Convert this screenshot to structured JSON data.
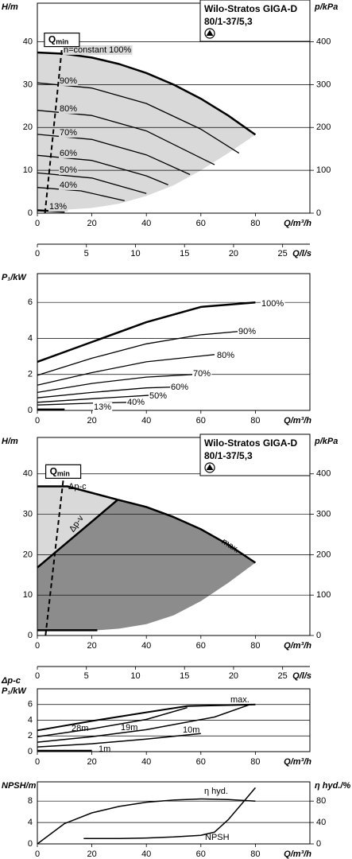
{
  "chart_data": [
    {
      "type": "line",
      "title": [
        "Wilo-Stratos GIGA-D",
        "80/1-37/5,3"
      ],
      "ylabel": "H/m",
      "y2label": "p/kPa",
      "xlabel": "Q/m³/h",
      "x2label": "Q/l/s",
      "xlim": [
        0,
        100
      ],
      "xticks": [
        0,
        20,
        40,
        60,
        80
      ],
      "ylim": [
        0,
        49
      ],
      "yticks": [
        0,
        10,
        20,
        30,
        40
      ],
      "y2lim": [
        0,
        490
      ],
      "y2ticks": [
        0,
        100,
        200,
        300,
        400
      ],
      "x2lim": [
        0,
        27.78
      ],
      "x2ticks": [
        0,
        5,
        10,
        15,
        20,
        25
      ],
      "grid": true,
      "areas": [
        {
          "color": "#d9d9d9",
          "x": [
            0,
            10,
            20,
            30,
            40,
            50,
            60,
            70,
            80,
            70,
            60,
            50,
            40,
            30,
            20,
            10,
            0
          ],
          "values": [
            37.5,
            37.2,
            36.3,
            34.8,
            32.7,
            30,
            26.7,
            22.8,
            18.3,
            14,
            10,
            6.5,
            4,
            2.2,
            1.2,
            0.8,
            0.7
          ]
        }
      ],
      "qmin": {
        "label": {
          "main": "Q",
          "sub": "min"
        },
        "x": [
          2.8,
          9
        ],
        "values": [
          0,
          38.5
        ]
      },
      "series": [
        {
          "name": "n=constant 100%",
          "color": "#000000",
          "line_width": 2.5,
          "x": [
            0,
            10,
            20,
            30,
            40,
            50,
            60,
            70,
            80
          ],
          "values": [
            37.5,
            37.2,
            36.3,
            34.8,
            32.7,
            30,
            26.7,
            22.8,
            18.3
          ]
        },
        {
          "name": "90%",
          "color": "#000000",
          "line_width": 1.3,
          "x": [
            0,
            20,
            40,
            60,
            74
          ],
          "values": [
            30.4,
            29.2,
            25.6,
            19.6,
            14.0
          ]
        },
        {
          "name": "80%",
          "color": "#000000",
          "line_width": 1.3,
          "x": [
            0,
            20,
            40,
            65
          ],
          "values": [
            24.0,
            22.8,
            19.2,
            11.3
          ]
        },
        {
          "name": "70%",
          "color": "#000000",
          "line_width": 1.3,
          "x": [
            0,
            20,
            40,
            56
          ],
          "values": [
            18.4,
            17.2,
            13.6,
            9.0
          ]
        },
        {
          "name": "60%",
          "color": "#000000",
          "line_width": 1.3,
          "x": [
            0,
            20,
            40,
            48
          ],
          "values": [
            13.5,
            12.3,
            8.7,
            6.6
          ]
        },
        {
          "name": "50%",
          "color": "#000000",
          "line_width": 1.3,
          "x": [
            0,
            20,
            40
          ],
          "values": [
            9.4,
            8.2,
            4.6
          ]
        },
        {
          "name": "40%",
          "color": "#000000",
          "line_width": 1.3,
          "x": [
            0,
            16,
            32
          ],
          "values": [
            6.0,
            5.2,
            2.9
          ]
        },
        {
          "name": "13%",
          "color": "#000000",
          "line_width": 2.5,
          "x": [
            0,
            10
          ],
          "values": [
            0.65,
            0.35
          ]
        }
      ]
    },
    {
      "type": "line",
      "ylabel": "P₁/kW",
      "xlabel": "Q/m³/h",
      "xlim": [
        0,
        100
      ],
      "xticks": [
        0,
        20,
        40,
        60,
        80
      ],
      "ylim": [
        0,
        7.6
      ],
      "yticks": [
        0,
        2,
        4,
        6
      ],
      "grid": true,
      "series": [
        {
          "name": "100%",
          "color": "#000000",
          "line_width": 2.5,
          "x": [
            0,
            20,
            40,
            60,
            80
          ],
          "values": [
            2.7,
            3.8,
            4.9,
            5.75,
            6.0
          ]
        },
        {
          "name": "90%",
          "color": "#000000",
          "line_width": 1.3,
          "x": [
            0,
            20,
            40,
            60,
            75
          ],
          "values": [
            1.95,
            2.9,
            3.7,
            4.2,
            4.4
          ]
        },
        {
          "name": "80%",
          "color": "#000000",
          "line_width": 1.3,
          "x": [
            0,
            20,
            40,
            65
          ],
          "values": [
            1.4,
            2.1,
            2.7,
            3.1
          ]
        },
        {
          "name": "70%",
          "color": "#000000",
          "line_width": 1.3,
          "x": [
            0,
            20,
            40,
            58
          ],
          "values": [
            1.0,
            1.5,
            1.85,
            2.0
          ]
        },
        {
          "name": "60%",
          "color": "#000000",
          "line_width": 1.3,
          "x": [
            0,
            20,
            40,
            50
          ],
          "values": [
            0.7,
            1.0,
            1.25,
            1.3
          ]
        },
        {
          "name": "50%",
          "color": "#000000",
          "line_width": 1.3,
          "x": [
            0,
            20,
            42
          ],
          "values": [
            0.45,
            0.65,
            0.85
          ]
        },
        {
          "name": "40%",
          "color": "#000000",
          "line_width": 1.3,
          "x": [
            0,
            20,
            34
          ],
          "values": [
            0.3,
            0.4,
            0.45
          ]
        },
        {
          "name": "13%",
          "color": "#000000",
          "line_width": 2.5,
          "x": [
            0,
            10
          ],
          "values": [
            0.05,
            0.05
          ]
        }
      ]
    },
    {
      "type": "line",
      "title": [
        "Wilo-Stratos GIGA-D",
        "80/1-37/5,3"
      ],
      "ylabel": "H/m",
      "y2label": "p/kPa",
      "xlabel": "Q/m³/h",
      "x2label": "Q/l/s",
      "xlim": [
        0,
        100
      ],
      "xticks": [
        0,
        20,
        40,
        60,
        80
      ],
      "ylim": [
        0,
        49
      ],
      "yticks": [
        0,
        10,
        20,
        30,
        40
      ],
      "y2lim": [
        0,
        490
      ],
      "y2ticks": [
        0,
        100,
        200,
        300,
        400
      ],
      "x2lim": [
        0,
        27.78
      ],
      "x2ticks": [
        0,
        5,
        10,
        15,
        20,
        25
      ],
      "grid": true,
      "areas": [
        {
          "color": "#d9d9d9",
          "x": [
            0,
            0,
            11,
            29.5
          ],
          "values": [
            16.8,
            36.9,
            36.9,
            33.6
          ]
        },
        {
          "color": "#8c8c8c",
          "x": [
            0,
            29.5,
            40,
            50,
            60,
            70,
            80,
            70,
            60,
            50,
            40,
            30,
            22,
            0
          ],
          "values": [
            16.8,
            33.6,
            31.8,
            29.3,
            26.3,
            22.5,
            18,
            13,
            8.5,
            5,
            2.8,
            1.7,
            1.3,
            1.3
          ]
        }
      ],
      "qmin": {
        "label": {
          "main": "Q",
          "sub": "min"
        },
        "x": [
          3,
          9.5
        ],
        "values": [
          0,
          38.5
        ]
      },
      "series": [
        {
          "name": "Δp-c",
          "color": "#000000",
          "line_width": 2.5,
          "x": [
            0,
            11,
            29.5
          ],
          "values": [
            36.9,
            36.9,
            33.6
          ]
        },
        {
          "name": "max.",
          "color": "#000000",
          "line_width": 2.5,
          "x": [
            29.5,
            40,
            50,
            60,
            70,
            80
          ],
          "values": [
            33.6,
            31.8,
            29.3,
            26.3,
            22.5,
            18
          ]
        },
        {
          "name": "Δp-v",
          "color": "#000000",
          "line_width": 2.5,
          "x": [
            0,
            29.5
          ],
          "values": [
            16.8,
            33.6
          ]
        },
        {
          "color": "#000000",
          "line_width": 2.5,
          "x": [
            0,
            22
          ],
          "values": [
            1.3,
            1.3
          ]
        }
      ]
    },
    {
      "type": "line",
      "ylabel": [
        "Δp-c",
        "P₁/kW"
      ],
      "xlabel": "Q/m³/h",
      "xlim": [
        0,
        100
      ],
      "xticks": [
        0,
        20,
        40,
        60,
        80
      ],
      "ylim": [
        0,
        8
      ],
      "yticks": [
        0,
        2,
        4,
        6
      ],
      "grid": true,
      "series": [
        {
          "name": "max.",
          "color": "#000000",
          "line_width": 2,
          "x": [
            0,
            20,
            40,
            55,
            80
          ],
          "values": [
            2.7,
            3.9,
            5.0,
            5.8,
            6.0
          ]
        },
        {
          "name": "28m",
          "color": "#000000",
          "line_width": 1.5,
          "x": [
            0,
            20,
            40,
            55
          ],
          "values": [
            1.9,
            2.9,
            4.1,
            5.6
          ]
        },
        {
          "name": "19m",
          "color": "#000000",
          "line_width": 1.5,
          "x": [
            0,
            20,
            40,
            65,
            78
          ],
          "values": [
            1.2,
            1.9,
            2.8,
            4.4,
            6.0
          ]
        },
        {
          "name": "10m",
          "color": "#000000",
          "line_width": 1.5,
          "x": [
            0,
            20,
            40,
            60
          ],
          "values": [
            0.6,
            1.0,
            1.6,
            2.3
          ]
        },
        {
          "name": "1m",
          "color": "#000000",
          "line_width": 2.5,
          "x": [
            0,
            20
          ],
          "values": [
            0.1,
            0.1
          ]
        }
      ]
    },
    {
      "type": "line",
      "ylabel": "NPSH/m",
      "y2label": "η hyd./%",
      "xlabel": "Q/m³/h",
      "xlim": [
        0,
        100
      ],
      "xticks": [
        0,
        20,
        40,
        60,
        80
      ],
      "ylim": [
        0,
        11.6
      ],
      "yticks": [
        0,
        4,
        8
      ],
      "y2lim": [
        0,
        116
      ],
      "y2ticks": [
        0,
        40,
        80
      ],
      "grid": true,
      "series": [
        {
          "name": "η hyd.",
          "color": "#000000",
          "line_width": 1.5,
          "axis": "y2",
          "x": [
            0,
            10,
            20,
            30,
            40,
            50,
            60,
            70,
            80
          ],
          "values": [
            0,
            38,
            58,
            70,
            78,
            82,
            84,
            83,
            80
          ]
        },
        {
          "name": "NPSH",
          "color": "#000000",
          "line_width": 1.5,
          "x": [
            17,
            30,
            40,
            50,
            60,
            65,
            70,
            75,
            80
          ],
          "values": [
            1.0,
            1.0,
            1.1,
            1.3,
            1.6,
            2.2,
            4.5,
            7.5,
            10.5
          ]
        }
      ]
    }
  ]
}
